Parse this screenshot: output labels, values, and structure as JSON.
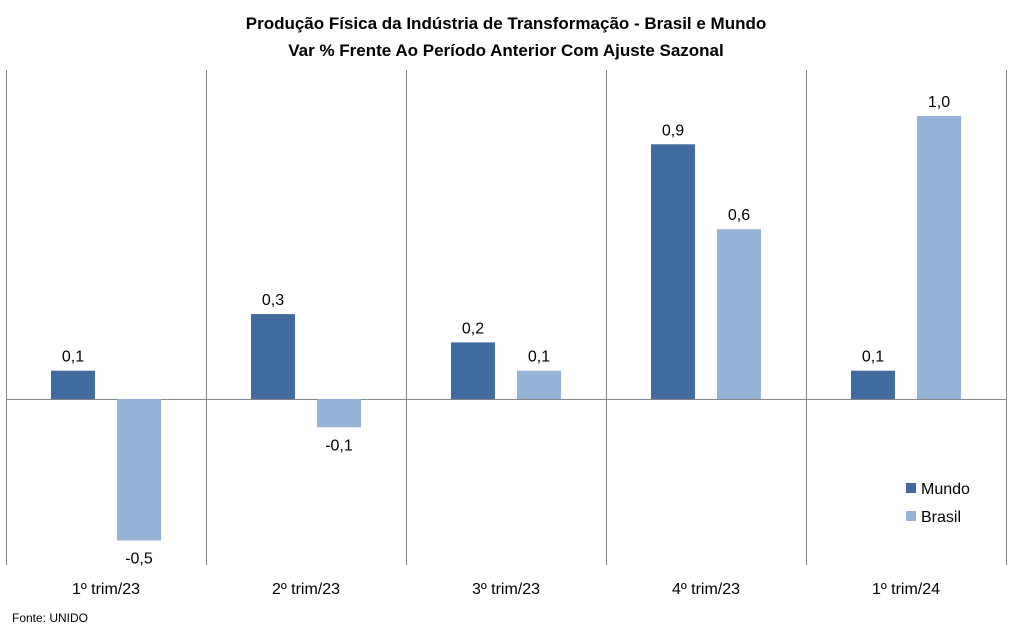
{
  "chart_data": {
    "type": "bar",
    "title": "Produção  Física da Indústria  de Transformação  - Brasil e Mundo",
    "subtitle": "Var % Frente Ao Período  Anterior Com Ajuste Sazonal",
    "categories": [
      "1º trim/23",
      "2º trim/23",
      "3º trim/23",
      "4º trim/23",
      "1º trim/24"
    ],
    "series": [
      {
        "name": "Mundo",
        "values": [
          0.1,
          0.3,
          0.2,
          0.9,
          0.1
        ],
        "labels": [
          "0,1",
          "0,3",
          "0,2",
          "0,9",
          "0,1"
        ],
        "color": "#416A9E"
      },
      {
        "name": "Brasil",
        "values": [
          -0.5,
          -0.1,
          0.1,
          0.6,
          1.0
        ],
        "labels": [
          "-0,5",
          "-0,1",
          "0,1",
          "0,6",
          "1,0"
        ],
        "color": "#95B3D7"
      }
    ],
    "ylim": [
      -0.6,
      1.2
    ],
    "grid": "vertical category separators",
    "legend": "bottom-right"
  },
  "source": "Fonte: UNIDO"
}
